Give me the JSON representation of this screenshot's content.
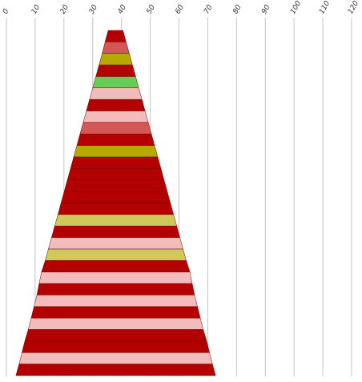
{
  "chart_data": {
    "type": "bar",
    "subtype": "funnel-pyramid",
    "xlim": [
      0,
      120
    ],
    "x_ticks": [
      0,
      10,
      20,
      30,
      40,
      50,
      60,
      70,
      80,
      90,
      100,
      110,
      120
    ],
    "tick_label_position": "top",
    "grid": true,
    "legend": "none",
    "center": 40,
    "bars": [
      {
        "left": 35.4,
        "right": 40.5,
        "color": "#b30000"
      },
      {
        "left": 34.3,
        "right": 41.6,
        "color": "#d45757"
      },
      {
        "left": 33.3,
        "right": 42.7,
        "color": "#b5aa00"
      },
      {
        "left": 32.2,
        "right": 43.8,
        "color": "#b30000"
      },
      {
        "left": 31.1,
        "right": 44.9,
        "color": "#66cc55"
      },
      {
        "left": 30.0,
        "right": 46.0,
        "color": "#f2bcbc"
      },
      {
        "left": 28.9,
        "right": 47.1,
        "color": "#b30000"
      },
      {
        "left": 27.8,
        "right": 48.2,
        "color": "#f2bcbc"
      },
      {
        "left": 26.7,
        "right": 49.3,
        "color": "#d45757"
      },
      {
        "left": 25.6,
        "right": 50.4,
        "color": "#b30000"
      },
      {
        "left": 24.5,
        "right": 51.5,
        "color": "#b5aa00"
      },
      {
        "left": 23.4,
        "right": 52.6,
        "color": "#b30000"
      },
      {
        "left": 22.3,
        "right": 53.7,
        "color": "#b30000"
      },
      {
        "left": 21.2,
        "right": 54.8,
        "color": "#b30000"
      },
      {
        "left": 20.1,
        "right": 55.9,
        "color": "#b30000"
      },
      {
        "left": 19.0,
        "right": 57.0,
        "color": "#b30000"
      },
      {
        "left": 17.9,
        "right": 58.1,
        "color": "#cfc85a"
      },
      {
        "left": 16.8,
        "right": 59.2,
        "color": "#b30000"
      },
      {
        "left": 15.7,
        "right": 60.3,
        "color": "#f2bcbc"
      },
      {
        "left": 14.6,
        "right": 61.4,
        "color": "#cfc85a"
      },
      {
        "left": 13.5,
        "right": 62.5,
        "color": "#b30000"
      },
      {
        "left": 12.2,
        "right": 63.8,
        "color": "#f2bcbc"
      },
      {
        "left": 11.4,
        "right": 64.6,
        "color": "#b30000"
      },
      {
        "left": 10.6,
        "right": 65.4,
        "color": "#f2bcbc"
      },
      {
        "left": 9.6,
        "right": 66.4,
        "color": "#b30000"
      },
      {
        "left": 8.6,
        "right": 67.4,
        "color": "#f2bcbc"
      },
      {
        "left": 7.6,
        "right": 68.4,
        "color": "#b30000"
      },
      {
        "left": 6.4,
        "right": 69.6,
        "color": "#b30000"
      },
      {
        "left": 5.4,
        "right": 70.6,
        "color": "#f2bcbc"
      },
      {
        "left": 4.4,
        "right": 71.6,
        "color": "#b30000"
      }
    ]
  }
}
